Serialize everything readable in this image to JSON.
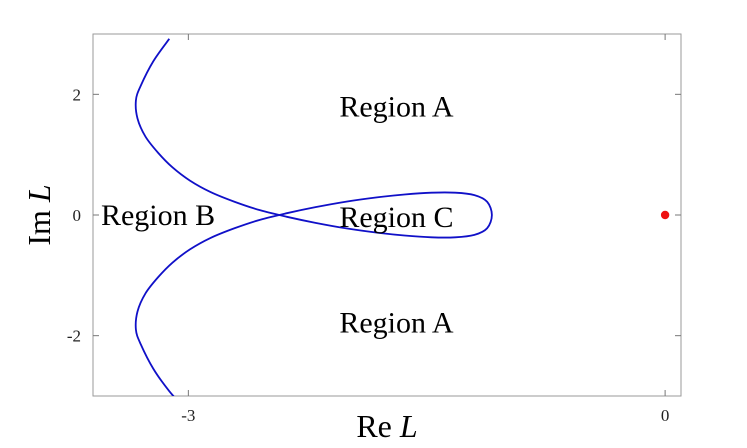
{
  "chart_data": {
    "type": "line",
    "xlabel": {
      "prefix": "Re",
      "var": "L"
    },
    "ylabel": {
      "prefix": "Im",
      "var": "L"
    },
    "xlim": [
      -3.6,
      0.1
    ],
    "ylim": [
      -3,
      3
    ],
    "xticks": [
      {
        "value": -3,
        "label": "-3"
      },
      {
        "value": 0,
        "label": "0"
      }
    ],
    "yticks": [
      {
        "value": 2,
        "label": "2"
      },
      {
        "value": 0,
        "label": "0"
      },
      {
        "value": -2,
        "label": "-2"
      }
    ],
    "grid": false,
    "series": [
      {
        "color": "#1010c8",
        "x": [
          -3.12,
          -3.22,
          -3.3,
          -3.33,
          -3.32,
          -3.27,
          -3.19,
          -3.1,
          -2.99,
          -2.86,
          -2.71,
          -2.55,
          -2.38,
          -2.2,
          -2.01,
          -1.82,
          -1.64,
          -1.47,
          -1.32,
          -1.2,
          -1.12,
          -1.09,
          -1.12,
          -1.2,
          -1.32,
          -1.47,
          -1.64,
          -1.82,
          -2.01,
          -2.2,
          -2.38,
          -2.55,
          -2.71,
          -2.86,
          -2.99,
          -3.1,
          -3.19,
          -3.27,
          -3.32,
          -3.33,
          -3.3,
          -3.22,
          -3.12,
          -3.04
        ],
        "y": [
          2.92,
          2.55,
          2.14,
          1.9,
          1.6,
          1.3,
          1.03,
          0.79,
          0.57,
          0.38,
          0.22,
          0.08,
          -0.03,
          -0.13,
          -0.22,
          -0.29,
          -0.34,
          -0.37,
          -0.37,
          -0.33,
          -0.22,
          0.0,
          0.22,
          0.33,
          0.37,
          0.37,
          0.34,
          0.29,
          0.22,
          0.13,
          0.03,
          -0.08,
          -0.22,
          -0.38,
          -0.57,
          -0.79,
          -1.03,
          -1.3,
          -1.6,
          -1.9,
          -2.14,
          -2.55,
          -2.92,
          -3.15
        ]
      }
    ],
    "points": [
      {
        "x": 0,
        "y": 0,
        "color": "#ee1111"
      }
    ],
    "annotations": [
      {
        "text": "Region A",
        "x": -2.05,
        "y": 1.8
      },
      {
        "text": "Region B",
        "x": -3.55,
        "y": 0.0
      },
      {
        "text": "Region C",
        "x": -2.05,
        "y": -0.03
      },
      {
        "text": "Region A",
        "x": -2.05,
        "y": -1.78
      }
    ]
  }
}
